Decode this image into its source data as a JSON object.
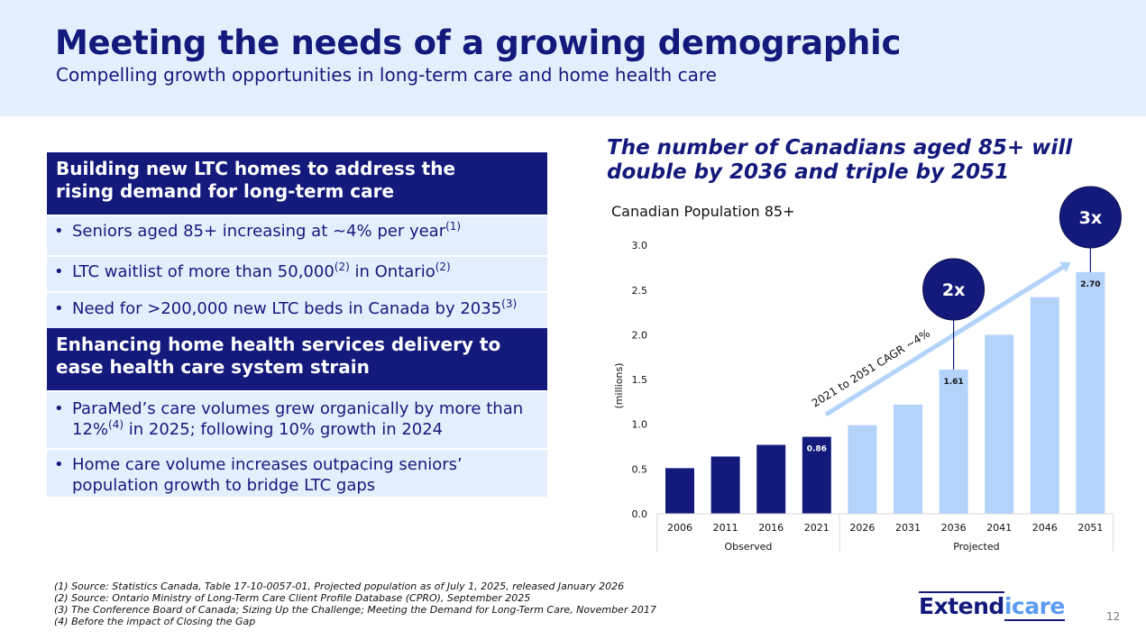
{
  "header": {
    "title": "Meeting the needs of a growing demographic",
    "subtitle": "Compelling growth opportunities in long-term care and home health care"
  },
  "left_panel": {
    "sections": [
      {
        "heading_line1": "Building new LTC homes to address the",
        "heading_line2": "rising demand for long-term care",
        "bullets": [
          {
            "parts": [
              {
                "t": "Seniors aged 85+ increasing at ~4% per year"
              },
              {
                "sup": "(1)"
              }
            ]
          },
          {
            "parts": [
              {
                "t": "LTC waitlist of more than 50,000"
              },
              {
                "sup": "(2)"
              },
              {
                "t": " in Ontario"
              },
              {
                "sup": "(2)"
              }
            ]
          },
          {
            "parts": [
              {
                "t": "Need for >200,000 new LTC beds in Canada by 2035"
              },
              {
                "sup": "(3)"
              }
            ]
          }
        ]
      },
      {
        "heading_line1": "Enhancing home health services delivery to",
        "heading_line2": "ease health care system strain",
        "bullets": [
          {
            "parts": [
              {
                "t": "ParaMed’s care volumes grew organically by more than 12%"
              },
              {
                "sup": "(4)"
              },
              {
                "t": " in 2025; following 10% growth in 2024"
              }
            ]
          },
          {
            "parts": [
              {
                "t": "Home care volume increases outpacing seniors’ population growth to bridge LTC gaps"
              }
            ]
          }
        ]
      }
    ]
  },
  "chart_heading": {
    "line1": "The number of Canadians aged 85+ will",
    "line2": "double by 2036 and triple by 2051"
  },
  "chart_data": {
    "type": "bar",
    "title": "Canadian Population 85+",
    "xlabel": "",
    "ylabel": "(millions)",
    "ylim": [
      0,
      3.0
    ],
    "yticks": [
      "0.0",
      "0.5",
      "1.0",
      "1.5",
      "2.0",
      "2.5",
      "3.0"
    ],
    "ytick_values": [
      0,
      0.5,
      1.0,
      1.5,
      2.0,
      2.5,
      3.0
    ],
    "grid": false,
    "categories": [
      "2006",
      "2011",
      "2016",
      "2021",
      "2026",
      "2031",
      "2036",
      "2041",
      "2046",
      "2051"
    ],
    "series": [
      {
        "name": "Observed",
        "color": "#141a7c",
        "values": [
          0.51,
          0.64,
          0.77,
          0.86,
          null,
          null,
          null,
          null,
          null,
          null
        ]
      },
      {
        "name": "Projected",
        "color": "#b3d3fa",
        "values": [
          null,
          null,
          null,
          null,
          0.99,
          1.22,
          1.61,
          2.0,
          2.42,
          2.7
        ]
      }
    ],
    "values": [
      0.51,
      0.64,
      0.77,
      0.86,
      0.99,
      1.22,
      1.61,
      2.0,
      2.42,
      2.7
    ],
    "data_labels": [
      {
        "category": "2021",
        "text": "0.86"
      },
      {
        "category": "2036",
        "text": "1.61"
      },
      {
        "category": "2051",
        "text": "2.70"
      }
    ],
    "groups": [
      {
        "label": "Observed",
        "from": "2006",
        "to": "2021"
      },
      {
        "label": "Projected",
        "from": "2026",
        "to": "2051"
      }
    ],
    "callouts": [
      {
        "category": "2036",
        "text": "2x"
      },
      {
        "category": "2051",
        "text": "3x"
      }
    ],
    "trend_arrow": {
      "from": "2021",
      "to": "2051",
      "label": "2021 to 2051 CAGR ~4%"
    }
  },
  "footnotes": [
    "(1)  Source: Statistics Canada, Table 17-10-0057-01, Projected population as of July 1, 2025, released January 2026",
    "(2)  Source: Ontario Ministry of Long-Term Care Client Profile Database (CPRO), September 2025",
    "(3)  The Conference Board of Canada; Sizing Up the Challenge; Meeting the Demand for Long-Term Care, November 2017",
    "(4)  Before the impact of Closing the Gap"
  ],
  "logo": {
    "part1": "Extend",
    "part2": "icare"
  },
  "page_number": "12",
  "colors": {
    "navy": "#141a7c",
    "light_blue": "#b3d3fa",
    "header_bg": "#e3effd",
    "logo_accent": "#5b9cf0"
  }
}
